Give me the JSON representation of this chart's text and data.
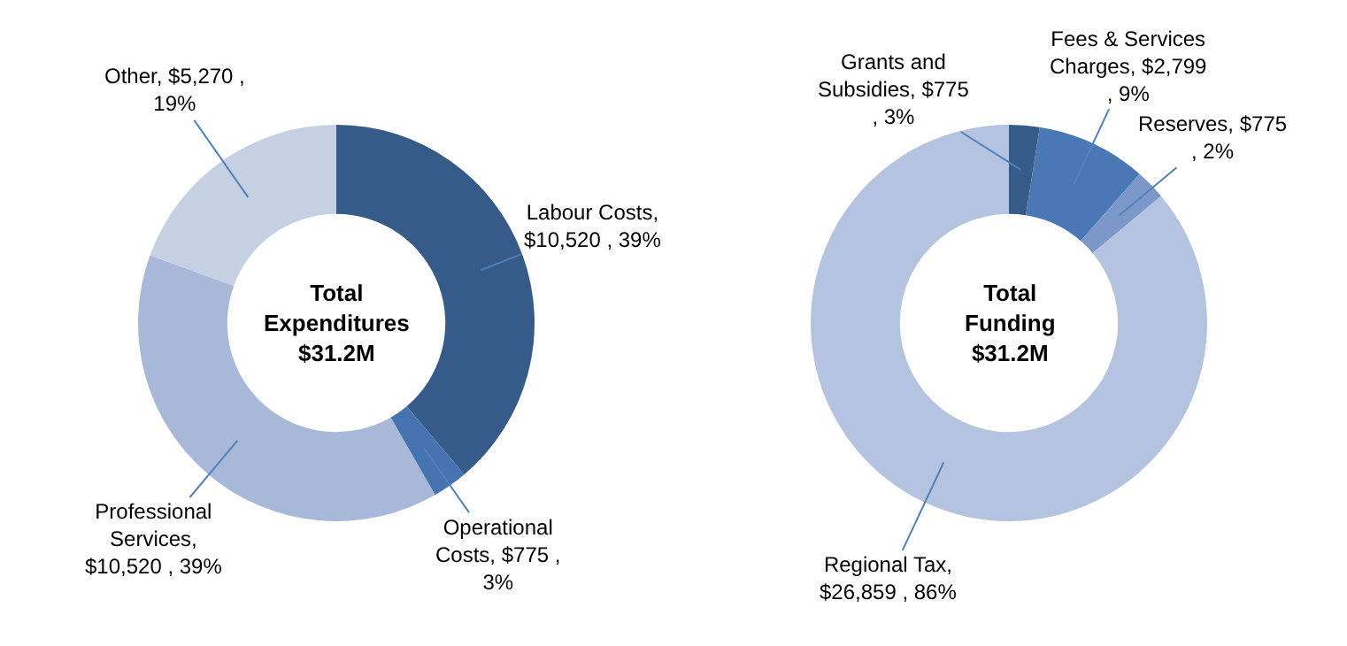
{
  "chart_data": [
    {
      "type": "donut",
      "title": "Total Expenditures",
      "subtitle": "$31.2M",
      "legend": false,
      "categories": [
        "Labour Costs",
        "Operational Costs",
        "Professional Services",
        "Other"
      ],
      "values": [
        10520,
        775,
        10520,
        5270
      ],
      "colors": [
        "#365b88",
        "#4674b0",
        "#a8b8d8",
        "#c5d0e3"
      ],
      "value_labels": [
        ", $10,520 , 39%",
        ", $775 , 3%",
        ", $10,520 , 39%",
        ", $5,270 , 19%"
      ]
    },
    {
      "type": "donut",
      "title": "Total Funding",
      "subtitle": "$31.2M",
      "legend": false,
      "categories": [
        "Grants and Subsidies",
        "Fees & Services Charges",
        "Reserves",
        "Regional Tax"
      ],
      "values": [
        775,
        2799,
        775,
        26859
      ],
      "colors": [
        "#365b88",
        "#4a78b4",
        "#7b98c8",
        "#b4c3df"
      ],
      "value_labels": [
        ", $775 , 3%",
        ", $2,799 , 9%",
        ", $775 , 2%",
        ", $26,859 , 86%"
      ]
    }
  ]
}
